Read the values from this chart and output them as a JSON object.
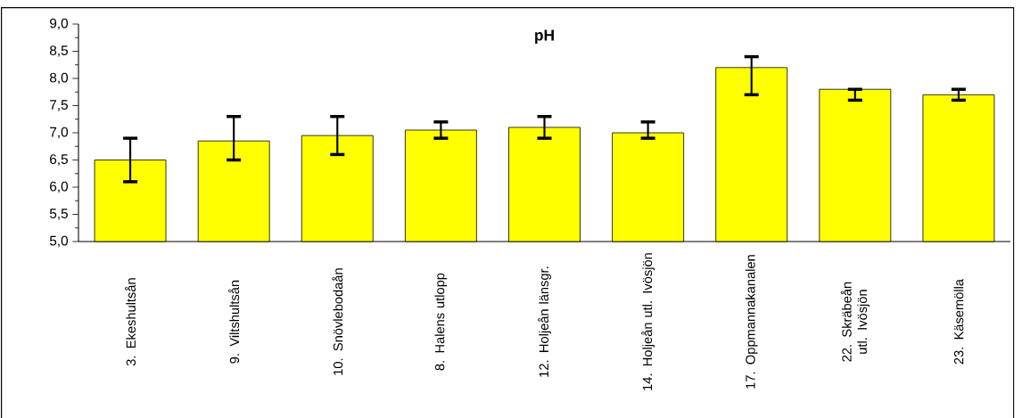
{
  "chart_data": {
    "type": "bar",
    "title": "pH",
    "categories": [
      "3. Ekeshultsån",
      "9. Viltshultsån",
      "10. Snövlebodaån",
      "8. Halens utlopp",
      "12. Holjeån länsgr.",
      "14. Holjeån utl. Ivösjön",
      "17. Oppmannakanalen",
      "22. Skräbeån utl. Ivösjön",
      "23. Käsemölla"
    ],
    "values": [
      6.5,
      6.85,
      6.95,
      7.05,
      7.1,
      7.0,
      8.2,
      7.8,
      7.7
    ],
    "errors": [
      [
        6.1,
        6.9
      ],
      [
        6.5,
        7.3
      ],
      [
        6.6,
        7.3
      ],
      [
        6.9,
        7.2
      ],
      [
        6.9,
        7.3
      ],
      [
        6.9,
        7.2
      ],
      [
        7.7,
        8.4
      ],
      [
        7.6,
        7.8
      ],
      [
        7.6,
        7.8
      ]
    ],
    "color": "#ffff00",
    "ylim": [
      5.0,
      9.0
    ],
    "yticks": [
      {
        "value": 5.0,
        "label": "5,0"
      },
      {
        "value": 5.5,
        "label": "5,5"
      },
      {
        "value": 6.0,
        "label": "6,0"
      },
      {
        "value": 6.5,
        "label": "6,5"
      },
      {
        "value": 7.0,
        "label": "7,0"
      },
      {
        "value": 7.5,
        "label": "7,5"
      },
      {
        "value": 8.0,
        "label": "8,0"
      },
      {
        "value": 8.5,
        "label": "8,5"
      },
      {
        "value": 9.0,
        "label": "9,0"
      }
    ],
    "grid": false
  }
}
